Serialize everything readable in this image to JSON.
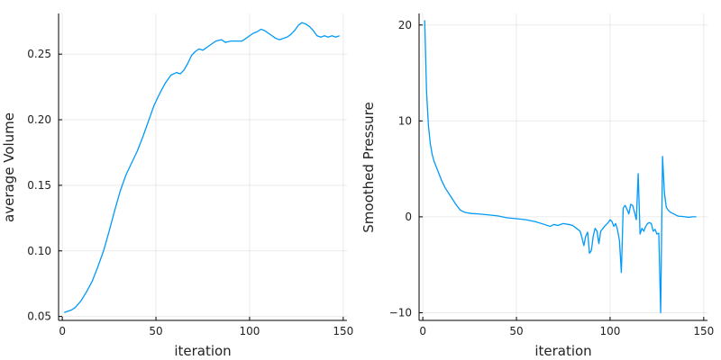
{
  "chart_data": [
    {
      "type": "line",
      "xlabel": "iteration",
      "ylabel": "average Volume",
      "xlim": [
        -2,
        152
      ],
      "ylim": [
        0.047,
        0.281
      ],
      "xticks": [
        0,
        50,
        100,
        150
      ],
      "yticks": [
        0.05,
        0.1,
        0.15,
        0.2,
        0.25
      ],
      "ytick_labels": [
        "0.05",
        "0.10",
        "0.15",
        "0.20",
        "0.25"
      ],
      "grid": true,
      "legend": "none",
      "color": "#009AFA",
      "series": [
        {
          "x": [
            1,
            3,
            5,
            7,
            10,
            13,
            16,
            19,
            22,
            25,
            28,
            31,
            34,
            37,
            40,
            43,
            46,
            49,
            52,
            55,
            58,
            61,
            63,
            65,
            67,
            69,
            71,
            73,
            75,
            77,
            80,
            82,
            85,
            87,
            90,
            93,
            96,
            98,
            100,
            102,
            104,
            106,
            108,
            110,
            112,
            114,
            116,
            118,
            120,
            122,
            124,
            126,
            128,
            130,
            132,
            134,
            136,
            138,
            140,
            142,
            144,
            146,
            148
          ],
          "y": [
            0.053,
            0.054,
            0.055,
            0.057,
            0.062,
            0.069,
            0.077,
            0.088,
            0.1,
            0.115,
            0.131,
            0.146,
            0.158,
            0.167,
            0.176,
            0.187,
            0.199,
            0.211,
            0.22,
            0.228,
            0.234,
            0.236,
            0.235,
            0.238,
            0.243,
            0.249,
            0.252,
            0.254,
            0.253,
            0.255,
            0.258,
            0.26,
            0.261,
            0.259,
            0.26,
            0.26,
            0.26,
            0.262,
            0.264,
            0.266,
            0.267,
            0.269,
            0.268,
            0.266,
            0.264,
            0.262,
            0.261,
            0.262,
            0.263,
            0.265,
            0.268,
            0.272,
            0.274,
            0.273,
            0.271,
            0.268,
            0.264,
            0.263,
            0.264,
            0.263,
            0.264,
            0.263,
            0.264
          ]
        }
      ]
    },
    {
      "type": "line",
      "xlabel": "iteration",
      "ylabel": "Smoothed Pressure",
      "xlim": [
        -2,
        152
      ],
      "ylim": [
        -10.8,
        21.2
      ],
      "xticks": [
        0,
        50,
        100,
        150
      ],
      "yticks": [
        -10,
        0,
        10,
        20
      ],
      "ytick_labels": [
        "−10",
        "0",
        "10",
        "20"
      ],
      "grid": true,
      "legend": "none",
      "color": "#009AFA",
      "series": [
        {
          "x": [
            1,
            2,
            3,
            4,
            5,
            6,
            8,
            10,
            12,
            14,
            16,
            18,
            20,
            22,
            24,
            26,
            30,
            35,
            40,
            45,
            50,
            55,
            60,
            65,
            68,
            70,
            72,
            75,
            78,
            80,
            82,
            84,
            85,
            86,
            87,
            88,
            89,
            90,
            91,
            92,
            93,
            94,
            95,
            97,
            99,
            100,
            101,
            102,
            103,
            104,
            105,
            106,
            107,
            108,
            109,
            110,
            111,
            112,
            113,
            114,
            115,
            116,
            117,
            118,
            119,
            120,
            121,
            122,
            123,
            124,
            125,
            126,
            127,
            128,
            129,
            130,
            131,
            132,
            133,
            134,
            135,
            136,
            137,
            138,
            140,
            142,
            144,
            146
          ],
          "y": [
            20.5,
            13.0,
            9.5,
            7.6,
            6.5,
            5.8,
            4.8,
            3.8,
            3.0,
            2.4,
            1.8,
            1.2,
            0.7,
            0.5,
            0.4,
            0.35,
            0.3,
            0.2,
            0.1,
            -0.1,
            -0.2,
            -0.3,
            -0.5,
            -0.8,
            -1.0,
            -0.8,
            -0.9,
            -0.7,
            -0.8,
            -0.9,
            -1.2,
            -1.5,
            -2.2,
            -3.0,
            -2.0,
            -1.6,
            -3.8,
            -3.5,
            -2.0,
            -1.2,
            -1.5,
            -2.8,
            -1.5,
            -1.0,
            -0.6,
            -0.3,
            -0.5,
            -1.0,
            -0.7,
            -1.4,
            -2.5,
            -5.8,
            0.9,
            1.2,
            0.8,
            0.3,
            1.3,
            1.2,
            0.5,
            -0.3,
            4.5,
            -1.8,
            -1.2,
            -1.5,
            -1.0,
            -0.7,
            -0.6,
            -0.7,
            -1.5,
            -1.3,
            -1.8,
            -1.7,
            -10.0,
            6.3,
            2.5,
            1.0,
            0.7,
            0.5,
            0.4,
            0.3,
            0.2,
            0.1,
            0.05,
            0.05,
            0.0,
            -0.05,
            0.0,
            0.0
          ]
        }
      ]
    }
  ]
}
